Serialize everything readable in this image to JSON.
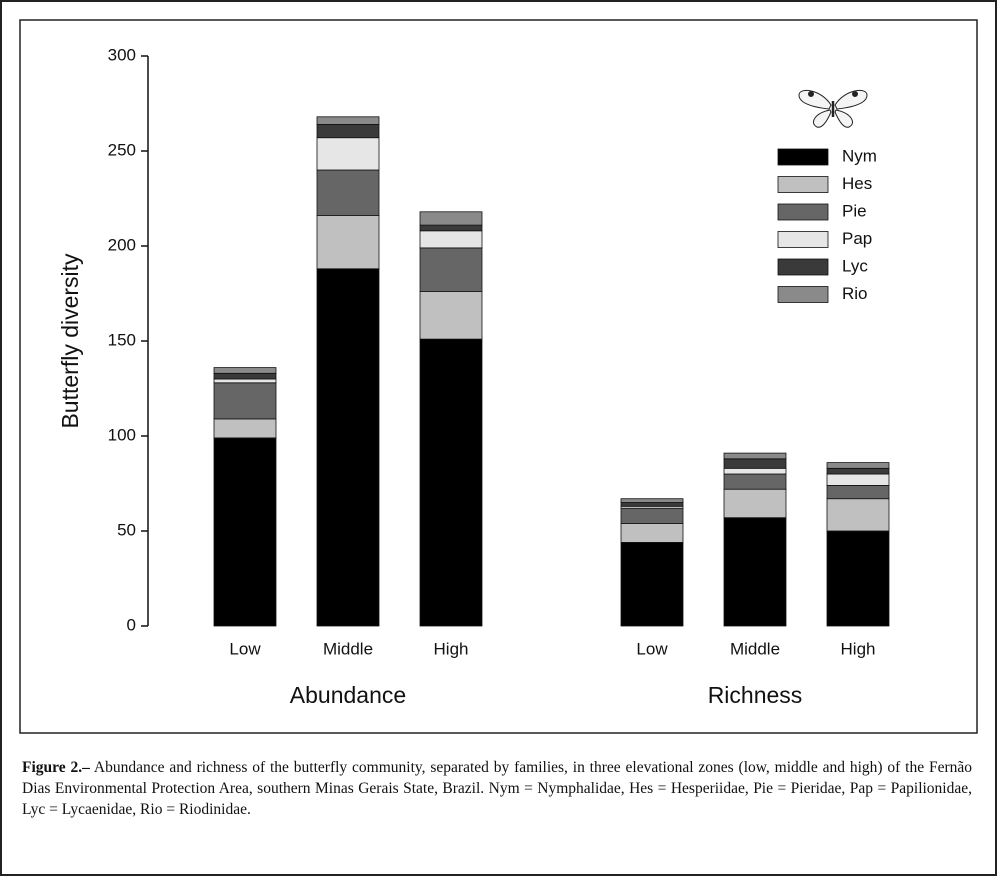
{
  "chart_data": {
    "type": "stacked-bar",
    "ylabel": "Butterfly diversity",
    "categories": [
      "Low",
      "Middle",
      "High",
      "Low",
      "Middle",
      "High"
    ],
    "groups": [
      "Abundance",
      "Richness"
    ],
    "ylim": [
      0,
      300
    ],
    "yticks": [
      0,
      50,
      100,
      150,
      200,
      250,
      300
    ],
    "series": [
      {
        "name": "Nym",
        "color": "#000000",
        "values": [
          99,
          188,
          151,
          44,
          57,
          50
        ]
      },
      {
        "name": "Hes",
        "color": "#c0c0c0",
        "values": [
          10,
          28,
          25,
          10,
          15,
          17
        ]
      },
      {
        "name": "Pie",
        "color": "#666666",
        "values": [
          19,
          24,
          23,
          8,
          8,
          7
        ]
      },
      {
        "name": "Pap",
        "color": "#e6e6e6",
        "values": [
          2,
          17,
          9,
          1,
          3,
          6
        ]
      },
      {
        "name": "Lyc",
        "color": "#3a3a3a",
        "values": [
          3,
          7,
          3,
          2,
          5,
          3
        ]
      },
      {
        "name": "Rio",
        "color": "#8a8a8a",
        "values": [
          3,
          4,
          7,
          2,
          3,
          3
        ]
      }
    ]
  },
  "caption": {
    "label": "Figure 2.–",
    "text": "Abundance and richness of the butterfly community, separated by families, in three elevational zones (low, middle and high) of the Fernão Dias Environmental Protection Area, southern Minas Gerais State, Brazil. Nym = Nymphalidae, Hes = Hesperiidae, Pie = Pieridae, Pap = Papilionidae, Lyc = Lycaenidae, Rio = Riodinidae."
  }
}
